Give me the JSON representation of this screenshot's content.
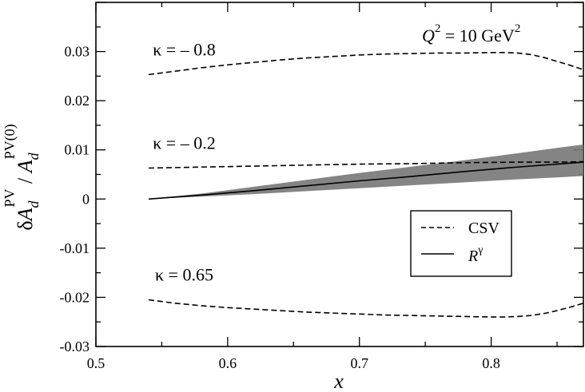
{
  "chart_data": {
    "type": "line",
    "xlabel": "x",
    "ylabel_parts": {
      "delta": "δ",
      "A": "A",
      "sub": "d",
      "sup_num": "PV",
      "slash": " / ",
      "sup_den": "PV(0)"
    },
    "xlim": [
      0.5,
      0.87
    ],
    "ylim": [
      -0.03,
      0.04
    ],
    "xticks": [
      0.5,
      0.6,
      0.7,
      0.8
    ],
    "xtick_labels": [
      "0.5",
      "0.6",
      "0.7",
      "0.8"
    ],
    "yticks": [
      -0.03,
      -0.02,
      -0.01,
      0,
      0.01,
      0.02,
      0.03
    ],
    "ytick_labels": [
      "-0.03",
      "-0.02",
      "-0.01",
      "0",
      "0.01",
      "0.02",
      "0.03"
    ],
    "annotation_q2": {
      "q": "Q",
      "sup": "2",
      "rest": " = 10 GeV",
      "sup2": "2"
    },
    "series": [
      {
        "kind": "CSV",
        "label": "κ = – 0.8",
        "style": "dashed",
        "x": [
          0.54,
          0.56,
          0.58,
          0.6,
          0.62,
          0.64,
          0.66,
          0.68,
          0.7,
          0.72,
          0.74,
          0.76,
          0.78,
          0.8,
          0.81,
          0.82,
          0.83,
          0.84,
          0.85,
          0.86,
          0.87
        ],
        "y": [
          0.0253,
          0.026,
          0.0267,
          0.0273,
          0.0278,
          0.0283,
          0.0287,
          0.029,
          0.0293,
          0.0295,
          0.0296,
          0.0297,
          0.0297,
          0.0298,
          0.0298,
          0.0297,
          0.0294,
          0.0288,
          0.028,
          0.0272,
          0.0263
        ]
      },
      {
        "kind": "CSV",
        "label": "κ = – 0.2",
        "style": "dashed",
        "x": [
          0.54,
          0.58,
          0.62,
          0.66,
          0.7,
          0.74,
          0.78,
          0.82,
          0.85,
          0.87
        ],
        "y": [
          0.0063,
          0.0065,
          0.0067,
          0.0069,
          0.0071,
          0.0072,
          0.0074,
          0.0075,
          0.0075,
          0.0076
        ]
      },
      {
        "kind": "CSV",
        "label": "κ = 0.65",
        "style": "dashed",
        "x": [
          0.54,
          0.56,
          0.58,
          0.6,
          0.62,
          0.64,
          0.66,
          0.68,
          0.7,
          0.72,
          0.74,
          0.76,
          0.78,
          0.8,
          0.81,
          0.82,
          0.83,
          0.84,
          0.85,
          0.86,
          0.87
        ],
        "y": [
          -0.0205,
          -0.0212,
          -0.0217,
          -0.0221,
          -0.0224,
          -0.0227,
          -0.023,
          -0.0232,
          -0.0234,
          -0.0236,
          -0.0237,
          -0.0238,
          -0.0239,
          -0.024,
          -0.024,
          -0.0239,
          -0.0237,
          -0.0233,
          -0.0227,
          -0.022,
          -0.0212
        ]
      },
      {
        "kind": "Rgamma",
        "label": "",
        "style": "solid",
        "x": [
          0.54,
          0.58,
          0.62,
          0.66,
          0.7,
          0.74,
          0.78,
          0.82,
          0.85,
          0.87
        ],
        "y": [
          0.0,
          0.0008,
          0.0017,
          0.0027,
          0.0037,
          0.0046,
          0.0056,
          0.0065,
          0.0071,
          0.0075
        ],
        "band_upper": [
          0.0,
          0.0011,
          0.0025,
          0.0039,
          0.0053,
          0.0066,
          0.0079,
          0.0093,
          0.0104,
          0.0111
        ],
        "band_lower": [
          0.0,
          0.0005,
          0.001,
          0.0016,
          0.0022,
          0.0028,
          0.0034,
          0.004,
          0.0044,
          0.0047
        ]
      }
    ],
    "legend": {
      "position": "lower-right",
      "entries": [
        {
          "label": "CSV",
          "style": "dashed"
        },
        {
          "label_main": "R",
          "label_sup": "γ",
          "style": "solid"
        }
      ]
    },
    "band_color": "#777777",
    "line_color": "#000000"
  }
}
